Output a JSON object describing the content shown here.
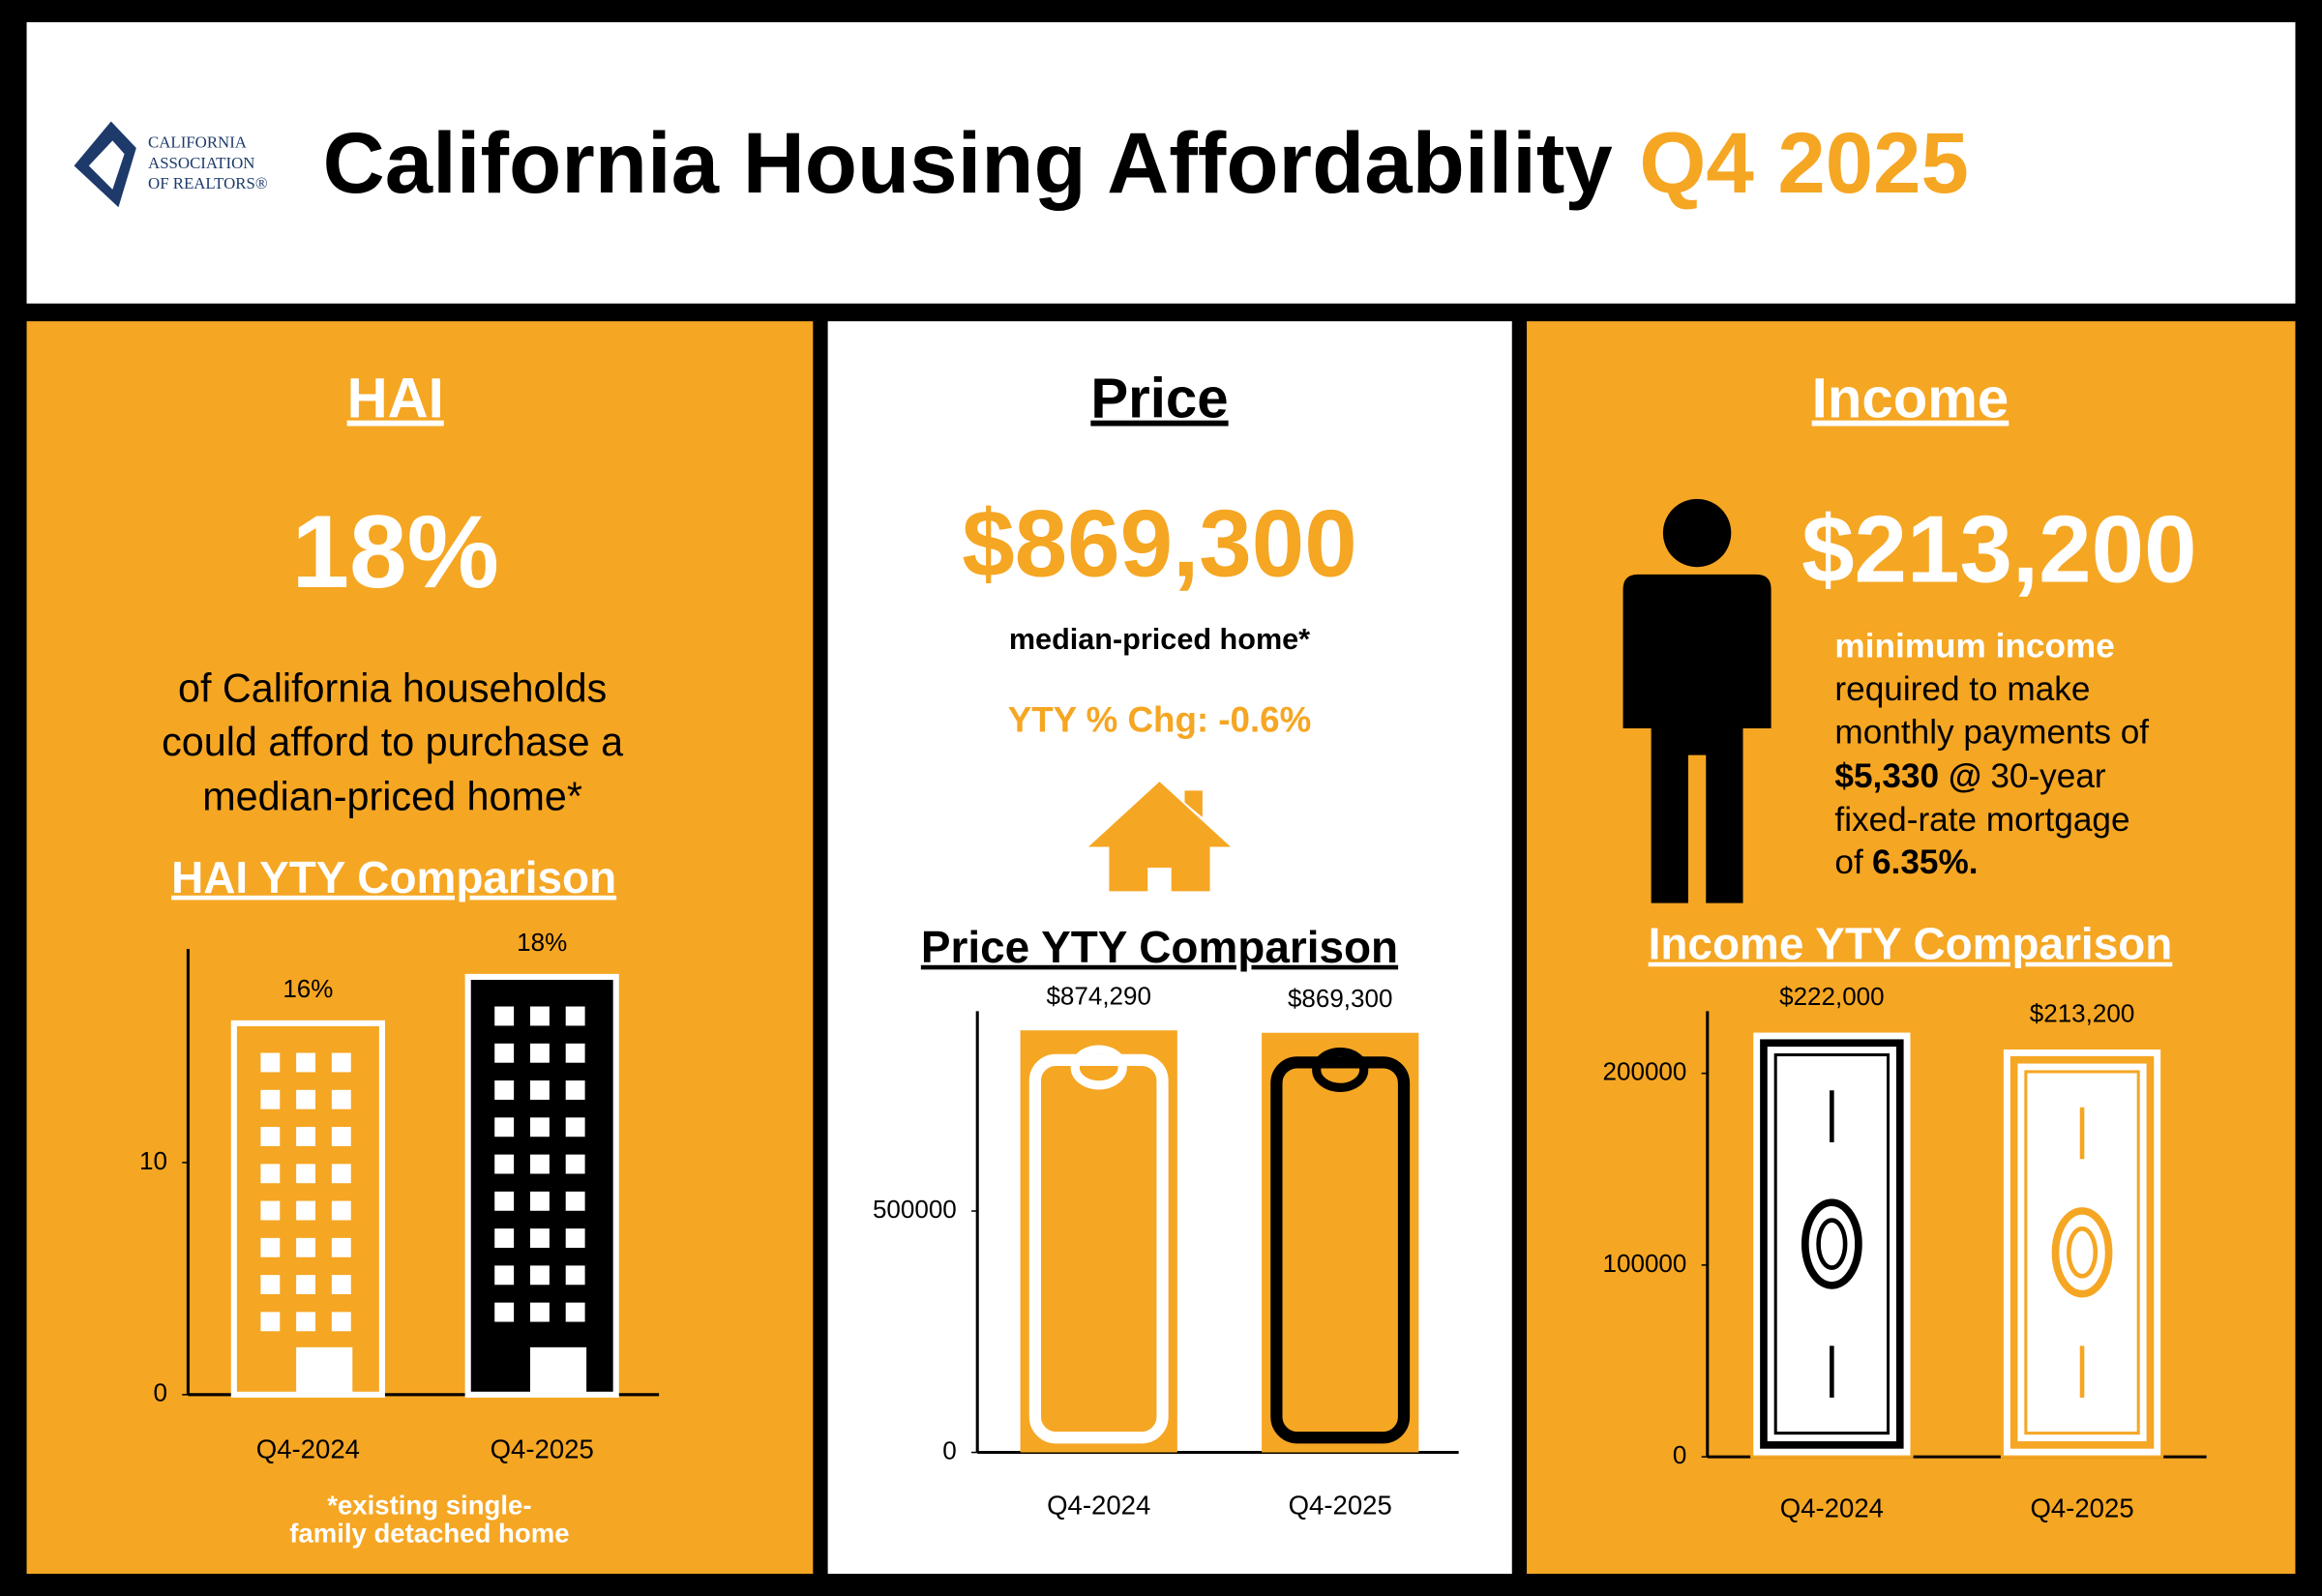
{
  "header": {
    "logo": [
      "CALIFORNIA",
      "ASSOCIATION",
      "OF REALTORS®"
    ],
    "title": "California Housing Affordability",
    "period": "Q4 2025"
  },
  "hai": {
    "heading": "HAI",
    "value": "18%",
    "text": [
      "of California households",
      "could afford to purchase a",
      "median-priced home*"
    ],
    "footnote": [
      "*existing single-",
      "family detached home"
    ]
  },
  "price": {
    "heading": "Price",
    "value": "$869,300",
    "caption": "median-priced home*",
    "change": "YTY % Chg: -0.6%"
  },
  "income": {
    "heading": "Income",
    "value": "$213,200",
    "text": [
      [
        "minimum income"
      ],
      [
        "required to make"
      ],
      [
        "monthly payments of"
      ],
      [
        "$5,330 @",
        "30-year"
      ],
      [
        "fixed-rate mortgage"
      ],
      [
        "of",
        "6.35%."
      ]
    ]
  },
  "chart_data": [
    {
      "type": "bar",
      "title": "HAI YTY Comparison",
      "categories": [
        "Q4-2024",
        "Q4-2025"
      ],
      "values": [
        16,
        18
      ],
      "value_labels": [
        "16%",
        "18%"
      ],
      "colors": [
        "#f5a623",
        "#000000"
      ],
      "ylim": [
        0,
        19.2
      ],
      "yticks": [
        0,
        10
      ]
    },
    {
      "type": "bar",
      "title": "Price YTY Comparison",
      "categories": [
        "Q4-2024",
        "Q4-2025"
      ],
      "values": [
        874290,
        869300
      ],
      "value_labels": [
        "$874,290",
        "$869,300"
      ],
      "colors": [
        "#f5a623",
        "#f5a623"
      ],
      "ylim": [
        0,
        914000
      ],
      "yticks": [
        0,
        500000
      ]
    },
    {
      "type": "bar",
      "title": "Income YTY Comparison",
      "categories": [
        "Q4-2024",
        "Q4-2025"
      ],
      "values": [
        222000,
        213200
      ],
      "value_labels": [
        "$222,000",
        "$213,200"
      ],
      "colors": [
        "#ffffff",
        "#ffffff"
      ],
      "ylim": [
        0,
        232400
      ],
      "yticks": [
        0,
        100000,
        200000
      ]
    }
  ]
}
